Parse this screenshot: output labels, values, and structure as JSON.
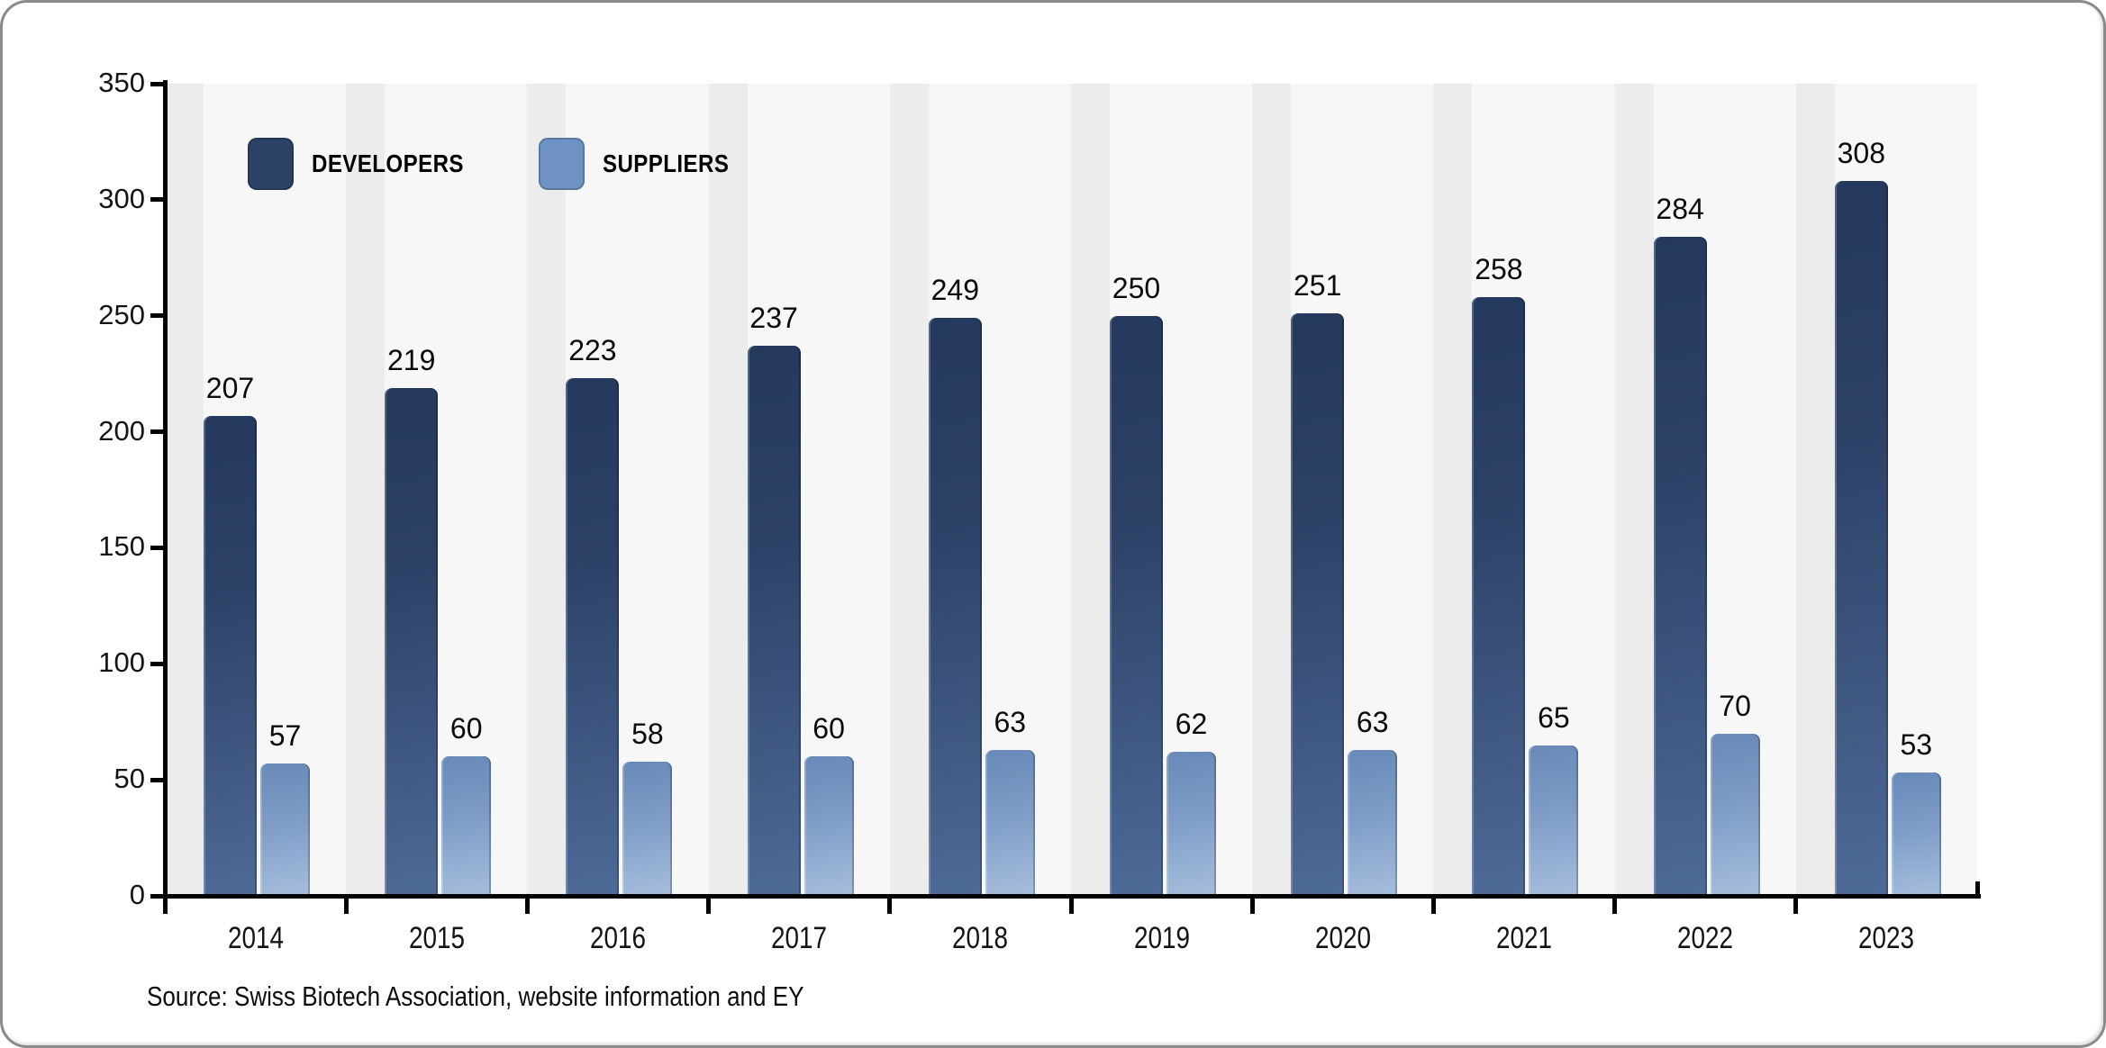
{
  "legend": {
    "items": [
      {
        "label": "DEVELOPERS",
        "color": "#2d4267"
      },
      {
        "label": "SUPPLIERS",
        "color": "#6e92c1"
      }
    ]
  },
  "source_note": "Source: Swiss Biotech Association, website information and EY",
  "chart_data": {
    "type": "bar",
    "categories": [
      "2014",
      "2015",
      "2016",
      "2017",
      "2018",
      "2019",
      "2020",
      "2021",
      "2022",
      "2023"
    ],
    "series": [
      {
        "name": "DEVELOPERS",
        "values": [
          207,
          219,
          223,
          237,
          249,
          250,
          251,
          258,
          284,
          308
        ],
        "color_top": "#24395d",
        "color_bottom": "#4e6a97"
      },
      {
        "name": "SUPPLIERS",
        "values": [
          57,
          60,
          58,
          60,
          63,
          62,
          63,
          65,
          70,
          53
        ],
        "color_top": "#6889b8",
        "color_bottom": "#a6bedd"
      }
    ],
    "title": "",
    "xlabel": "",
    "ylabel": "",
    "yticks": [
      0,
      50,
      100,
      150,
      200,
      250,
      300,
      350
    ],
    "ylim": [
      0,
      350
    ],
    "grid": false,
    "legend_position": "top-left",
    "value_labels": true,
    "plot_background": "#f3f4f3"
  }
}
